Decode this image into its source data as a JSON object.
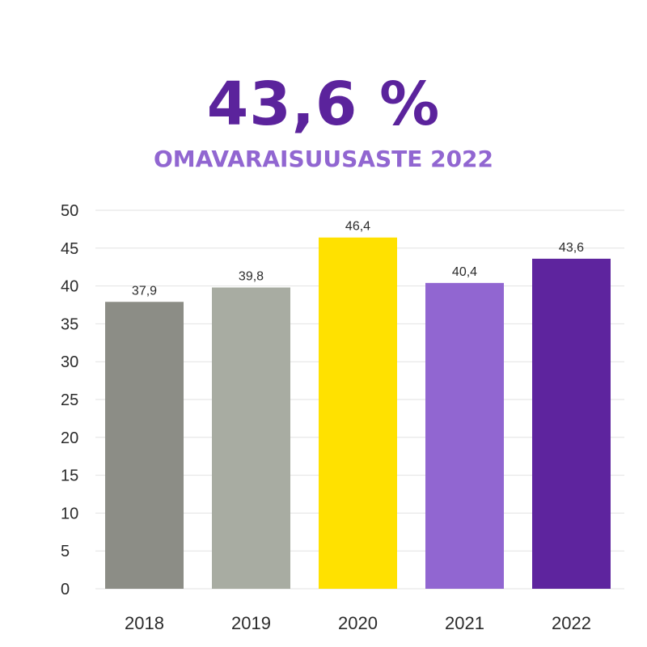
{
  "headline": "43,6 %",
  "subtitle": "OMAVARAISUUSASTE 2022",
  "chart_data": {
    "type": "bar",
    "categories": [
      "2018",
      "2019",
      "2020",
      "2021",
      "2022"
    ],
    "values": [
      37.9,
      39.8,
      46.4,
      40.4,
      43.6
    ],
    "value_labels": [
      "37,9",
      "39,8",
      "46,4",
      "40,4",
      "43,6"
    ],
    "bar_colors": [
      "#8c8d86",
      "#a8aca2",
      "#ffe100",
      "#9166d1",
      "#5e249e"
    ],
    "ylim": [
      0,
      50
    ],
    "yticks": [
      0,
      5,
      10,
      15,
      20,
      25,
      30,
      35,
      40,
      45,
      50
    ],
    "grid": true,
    "gridline_color": "#e2e2e2",
    "xlabel": "",
    "ylabel": ""
  }
}
